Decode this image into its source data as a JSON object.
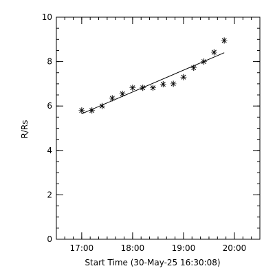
{
  "chart_data": {
    "type": "scatter",
    "xlabel": "Start Time (30-May-25 16:30:08)",
    "ylabel": "R/Rs",
    "xlim": [
      "16:30:08",
      "20:30:00"
    ],
    "ylim": [
      0,
      10
    ],
    "x_ticks": [
      "17:00",
      "18:00",
      "19:00",
      "20:00"
    ],
    "y_ticks": [
      0,
      2,
      4,
      6,
      8,
      10
    ],
    "x_minor_interval_minutes": 10,
    "y_minor_interval": 0.5,
    "grid": false,
    "legend": "none",
    "marker": "asterisk",
    "color": "#000000",
    "points": [
      {
        "time": "17:00",
        "value": 5.8
      },
      {
        "time": "17:12",
        "value": 5.8
      },
      {
        "time": "17:24",
        "value": 6.0
      },
      {
        "time": "17:36",
        "value": 6.35
      },
      {
        "time": "17:48",
        "value": 6.55
      },
      {
        "time": "18:00",
        "value": 6.82
      },
      {
        "time": "18:12",
        "value": 6.82
      },
      {
        "time": "18:24",
        "value": 6.82
      },
      {
        "time": "18:36",
        "value": 6.98
      },
      {
        "time": "18:48",
        "value": 7.0
      },
      {
        "time": "19:00",
        "value": 7.3
      },
      {
        "time": "19:12",
        "value": 7.72
      },
      {
        "time": "19:24",
        "value": 8.0
      },
      {
        "time": "19:36",
        "value": 8.42
      },
      {
        "time": "19:48",
        "value": 8.95
      }
    ],
    "fit_line": [
      {
        "time": "17:00",
        "value": 5.65
      },
      {
        "time": "19:48",
        "value": 8.4
      }
    ]
  }
}
